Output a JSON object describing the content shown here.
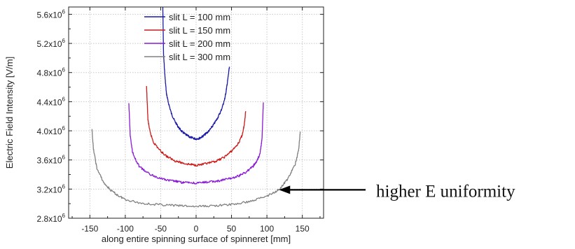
{
  "chart_data": {
    "type": "line",
    "xlabel": "along entire spinning surface of spinneret [mm]",
    "ylabel": "Electric Field Intensity [V/m]",
    "xlim": [
      -180,
      180
    ],
    "ylim": [
      2800000,
      5700000
    ],
    "x_ticks": [
      -150,
      -100,
      -50,
      0,
      50,
      100,
      150
    ],
    "y_ticks": [
      {
        "value": 2800000,
        "mantissa": "2.8x10",
        "exp": "6"
      },
      {
        "value": 3200000,
        "mantissa": "3.2x10",
        "exp": "6"
      },
      {
        "value": 3600000,
        "mantissa": "3.6x10",
        "exp": "6"
      },
      {
        "value": 4000000,
        "mantissa": "4.0x10",
        "exp": "6"
      },
      {
        "value": 4400000,
        "mantissa": "4.4x10",
        "exp": "6"
      },
      {
        "value": 4800000,
        "mantissa": "4.8x10",
        "exp": "6"
      },
      {
        "value": 5200000,
        "mantissa": "5.2x10",
        "exp": "6"
      },
      {
        "value": 5600000,
        "mantissa": "5.6x10",
        "exp": "6"
      }
    ],
    "grid": true,
    "legend_position": "top-center",
    "series": [
      {
        "name": "slit L = 100 mm",
        "color": "#1a1aa6",
        "x": [
          -47,
          -46,
          -44,
          -42,
          -40,
          -35,
          -30,
          -25,
          -20,
          -15,
          -10,
          -5,
          0,
          5,
          10,
          15,
          20,
          25,
          30,
          35,
          40,
          42,
          44,
          46,
          47
        ],
        "y": [
          5700000,
          5050000,
          4750000,
          4520000,
          4420000,
          4240000,
          4130000,
          4050000,
          3990000,
          3950000,
          3920000,
          3900000,
          3890000,
          3900000,
          3930000,
          3970000,
          4020000,
          4090000,
          4170000,
          4270000,
          4420000,
          4520000,
          4650000,
          4800000,
          4880000
        ]
      },
      {
        "name": "slit L = 150 mm",
        "color": "#cc1a1a",
        "x": [
          -70,
          -68,
          -65,
          -60,
          -50,
          -40,
          -30,
          -20,
          -10,
          0,
          10,
          20,
          30,
          40,
          50,
          60,
          65,
          68,
          70
        ],
        "y": [
          4600000,
          4150000,
          3980000,
          3840000,
          3720000,
          3640000,
          3590000,
          3560000,
          3540000,
          3530000,
          3540000,
          3560000,
          3590000,
          3640000,
          3720000,
          3830000,
          3940000,
          4080000,
          4270000
        ]
      },
      {
        "name": "slit L = 200 mm",
        "color": "#8a1ad6",
        "x": [
          -95,
          -93,
          -90,
          -85,
          -80,
          -70,
          -60,
          -50,
          -40,
          -30,
          -20,
          -10,
          0,
          10,
          20,
          30,
          40,
          50,
          60,
          70,
          80,
          85,
          90,
          93,
          95
        ],
        "y": [
          4380000,
          3930000,
          3720000,
          3590000,
          3510000,
          3430000,
          3380000,
          3350000,
          3320000,
          3310000,
          3290000,
          3290000,
          3280000,
          3290000,
          3300000,
          3310000,
          3330000,
          3350000,
          3380000,
          3430000,
          3510000,
          3570000,
          3680000,
          3880000,
          4390000
        ]
      },
      {
        "name": "slit L = 300 mm",
        "color": "#808080",
        "x": [
          -147,
          -145,
          -140,
          -130,
          -120,
          -110,
          -100,
          -80,
          -60,
          -40,
          -20,
          0,
          20,
          40,
          60,
          80,
          100,
          110,
          120,
          130,
          140,
          145,
          147
        ],
        "y": [
          4010000,
          3750000,
          3480000,
          3280000,
          3180000,
          3110000,
          3060000,
          3010000,
          2990000,
          2980000,
          2970000,
          2960000,
          2970000,
          2980000,
          3000000,
          3040000,
          3110000,
          3150000,
          3220000,
          3350000,
          3540000,
          3750000,
          3990000
        ]
      }
    ],
    "annotation": {
      "text": "higher E uniformity",
      "points_to": {
        "x": 115,
        "y": 3200000
      }
    }
  }
}
